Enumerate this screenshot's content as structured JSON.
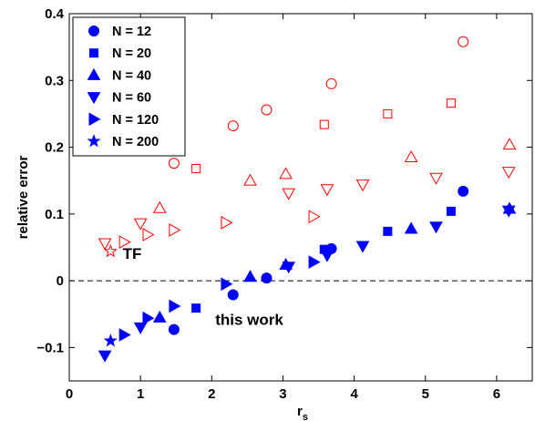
{
  "chart_data": {
    "type": "scatter",
    "xlabel": "r",
    "xlabel_subscript": "s",
    "ylabel": "relative error",
    "xlim": [
      0,
      6.5
    ],
    "ylim": [
      -0.15,
      0.4
    ],
    "xticks": [
      0,
      1,
      2,
      3,
      4,
      5,
      6
    ],
    "yticks": [
      -0.1,
      0,
      0.1,
      0.2,
      0.3,
      0.4
    ],
    "ytick_labels": [
      "−0.1",
      "0",
      "0.1",
      "0.2",
      "0.3",
      "0.4"
    ],
    "grid": false,
    "legend_position": "top-left",
    "reference_line": {
      "y": 0,
      "style": "dashed",
      "color": "#000000"
    },
    "annotations": [
      {
        "text": "TF",
        "x": 0.75,
        "y": 0.033
      },
      {
        "text": "this work",
        "x": 2.05,
        "y": -0.066
      }
    ],
    "groups": [
      {
        "name": "this work",
        "color": "#0000ff",
        "filled": true
      },
      {
        "name": "TF",
        "color": "#ff0000",
        "filled": false
      }
    ],
    "series": [
      {
        "name": "N = 12",
        "marker": "circle",
        "this_work": [
          [
            1.47,
            -0.073
          ],
          [
            2.3,
            -0.021
          ],
          [
            2.77,
            0.004
          ],
          [
            3.68,
            0.048
          ],
          [
            5.53,
            0.134
          ]
        ],
        "tf": [
          [
            1.47,
            0.176
          ],
          [
            2.3,
            0.232
          ],
          [
            2.77,
            0.256
          ],
          [
            3.68,
            0.295
          ],
          [
            5.53,
            0.358
          ]
        ]
      },
      {
        "name": "N = 20",
        "marker": "square",
        "this_work": [
          [
            1.78,
            -0.041
          ],
          [
            3.58,
            0.047
          ],
          [
            4.47,
            0.074
          ],
          [
            5.36,
            0.104
          ]
        ],
        "tf": [
          [
            1.78,
            0.168
          ],
          [
            3.58,
            0.234
          ],
          [
            4.47,
            0.25
          ],
          [
            5.36,
            0.266
          ]
        ]
      },
      {
        "name": "N = 40",
        "marker": "triangle-up",
        "this_work": [
          [
            1.27,
            -0.055
          ],
          [
            2.54,
            0.006
          ],
          [
            3.04,
            0.024
          ],
          [
            4.8,
            0.078
          ],
          [
            6.18,
            0.108
          ]
        ],
        "tf": [
          [
            1.27,
            0.109
          ],
          [
            2.54,
            0.15
          ],
          [
            3.04,
            0.16
          ],
          [
            4.8,
            0.185
          ],
          [
            6.18,
            0.204
          ]
        ]
      },
      {
        "name": "N = 60",
        "marker": "triangle-down",
        "this_work": [
          [
            0.5,
            -0.112
          ],
          [
            1.0,
            -0.07
          ],
          [
            3.08,
            0.021
          ],
          [
            3.62,
            0.038
          ],
          [
            4.12,
            0.052
          ],
          [
            5.15,
            0.081
          ],
          [
            6.17,
            0.105
          ]
        ],
        "tf": [
          [
            0.5,
            0.056
          ],
          [
            1.0,
            0.086
          ],
          [
            3.08,
            0.131
          ],
          [
            3.62,
            0.137
          ],
          [
            4.12,
            0.144
          ],
          [
            5.15,
            0.154
          ],
          [
            6.17,
            0.163
          ]
        ]
      },
      {
        "name": "N = 120",
        "marker": "triangle-right",
        "this_work": [
          [
            0.77,
            -0.081
          ],
          [
            1.1,
            -0.056
          ],
          [
            1.47,
            -0.038
          ],
          [
            2.2,
            -0.005
          ],
          [
            3.43,
            0.028
          ]
        ],
        "tf": [
          [
            0.77,
            0.058
          ],
          [
            1.1,
            0.069
          ],
          [
            1.47,
            0.076
          ],
          [
            2.2,
            0.087
          ],
          [
            3.43,
            0.096
          ]
        ]
      },
      {
        "name": "N = 200",
        "marker": "star",
        "this_work": [
          [
            0.58,
            -0.09
          ]
        ],
        "tf": [
          [
            0.58,
            0.044
          ]
        ]
      }
    ]
  }
}
